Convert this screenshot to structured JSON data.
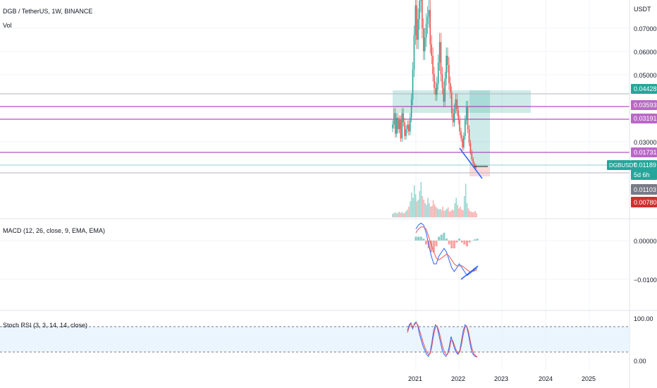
{
  "header": {
    "title": "DGB / TetherUS, 1W, BINANCE",
    "volume_label": "Vol",
    "currency": "USDT"
  },
  "macd": {
    "label": "MACD (12, 26, close, 9, EMA, EMA)"
  },
  "stoch": {
    "label": "Stoch RSI (3, 3, 14, 14, close)"
  },
  "price_tags": [
    {
      "text": "0.04428",
      "color": "#26a69a"
    },
    {
      "text": "0.03593",
      "color": "#ba68c8"
    },
    {
      "text": "0.03191",
      "color": "#ba68c8"
    },
    {
      "text": "0.01731",
      "color": "#ba68c8"
    },
    {
      "text": "0.01189",
      "color": "#26a69a"
    },
    {
      "text": "5d 6h",
      "color": "#26a69a"
    },
    {
      "text": "0.01103",
      "color": "#787b86"
    },
    {
      "text": "0.00780",
      "color": "#d32f2f"
    }
  ],
  "symbol_tag": {
    "text": "DGBUSDT",
    "color": "#26a69a"
  },
  "colors": {
    "up": "#26a69a",
    "down": "#ef5350",
    "grid": "#f0f3fa",
    "purple_line": "#9c27b0",
    "trend_line": "#2962ff",
    "stoch_fill": "#e3f2fd"
  },
  "chart_data": [
    {
      "type": "candlestick",
      "title": "DGB / TetherUS, 1W, BINANCE",
      "y_axis_labels": [
        "0.07000",
        "0.06000",
        "0.05000",
        "0.03000"
      ],
      "x_axis_labels": [
        "2021",
        "2022",
        "2023",
        "2024",
        "2025"
      ],
      "horizontal_levels": [
        0.04428,
        0.03593,
        0.03191,
        0.01731,
        0.01189,
        0.01103
      ],
      "current_price": 0.01189,
      "close_series": [
        0.031,
        0.036,
        0.027,
        0.034,
        0.029,
        0.033,
        0.025,
        0.036,
        0.032,
        0.026,
        0.029,
        0.031,
        0.028,
        0.034,
        0.042,
        0.055,
        0.07,
        0.083,
        0.068,
        0.077,
        0.085,
        0.088,
        0.073,
        0.063,
        0.069,
        0.075,
        0.078,
        0.081,
        0.066,
        0.061,
        0.053,
        0.047,
        0.044,
        0.049,
        0.058,
        0.067,
        0.053,
        0.047,
        0.041,
        0.051,
        0.061,
        0.057,
        0.049,
        0.045,
        0.036,
        0.032,
        0.038,
        0.042,
        0.037,
        0.033,
        0.028,
        0.025,
        0.021,
        0.026,
        0.033,
        0.039,
        0.029,
        0.023,
        0.019,
        0.016,
        0.014,
        0.013,
        0.012
      ]
    },
    {
      "type": "bar",
      "title": "Vol",
      "values": [
        1.0,
        1.2,
        1.4,
        1.1,
        1.3,
        1.6,
        1.2,
        1.5,
        1.1,
        1.3,
        1.8,
        2.2,
        3.0,
        4.5,
        7.0,
        5.5,
        9.0,
        6.5,
        4.5,
        5.0,
        7.5,
        10.0,
        6.0,
        5.0,
        4.0,
        3.5,
        5.5,
        4.0,
        3.0,
        3.2,
        4.8,
        3.6,
        3.0,
        2.6,
        2.2,
        2.4,
        2.1,
        3.0,
        1.8,
        2.0,
        2.4,
        2.8,
        1.6,
        1.8,
        2.2,
        2.0,
        4.0,
        5.5,
        3.5,
        2.5,
        3.0,
        2.2,
        2.0,
        6.0,
        9.5,
        4.0,
        2.5,
        1.8,
        1.6,
        1.4,
        1.5,
        1.8,
        1.2
      ]
    },
    {
      "type": "line",
      "title": "MACD (12, 26, close, 9, EMA, EMA)",
      "y_axis_labels": [
        "0.00000",
        "−0.01000"
      ],
      "series": [
        {
          "values": [
            0.003,
            0.004,
            0.0045,
            0.004,
            0.002,
            -0.001,
            -0.004,
            -0.006,
            -0.006,
            -0.004,
            -0.003,
            -0.002,
            -0.003,
            -0.005,
            -0.007,
            -0.008,
            -0.007,
            -0.006,
            -0.007,
            -0.008,
            -0.009,
            -0.0085,
            -0.008,
            -0.0075,
            -0.007
          ]
        },
        {
          "values": [
            0.002,
            0.003,
            0.0035,
            0.0035,
            0.003,
            0.001,
            -0.001,
            -0.003,
            -0.0045,
            -0.005,
            -0.0045,
            -0.004,
            -0.0035,
            -0.004,
            -0.005,
            -0.006,
            -0.0065,
            -0.0065,
            -0.0065,
            -0.007,
            -0.0075,
            -0.008,
            -0.008,
            -0.0078,
            -0.0075
          ]
        }
      ],
      "histogram": [
        0.001,
        0.001,
        0.001,
        0.0005,
        -0.001,
        -0.002,
        -0.003,
        -0.003,
        -0.0015,
        0.001,
        0.0015,
        0.002,
        0.0005,
        -0.001,
        -0.002,
        -0.002,
        -0.0005,
        0.0005,
        -0.0005,
        -0.001,
        -0.0015,
        -0.0005,
        0.0,
        0.0003,
        0.0005
      ]
    },
    {
      "type": "line",
      "title": "Stoch RSI (3, 3, 14, 14, close)",
      "y_axis_labels": [
        "100.00",
        "0.00"
      ],
      "ylim": [
        0,
        100
      ],
      "bands": [
        80,
        20
      ],
      "series": [
        {
          "values": [
            70,
            85,
            90,
            75,
            88,
            92,
            80,
            60,
            45,
            30,
            20,
            10,
            5,
            15,
            40,
            70,
            85,
            80,
            60,
            40,
            20,
            10,
            5,
            12,
            30,
            55,
            40,
            25,
            15,
            10,
            20,
            45,
            70,
            85,
            80,
            60,
            35,
            15,
            8,
            5,
            3
          ]
        },
        {
          "values": [
            65,
            80,
            88,
            80,
            85,
            90,
            84,
            70,
            55,
            40,
            28,
            17,
            10,
            12,
            30,
            58,
            78,
            82,
            70,
            52,
            32,
            18,
            10,
            10,
            22,
            45,
            45,
            32,
            20,
            13,
            16,
            35,
            60,
            78,
            82,
            68,
            45,
            25,
            12,
            7,
            4
          ]
        }
      ]
    }
  ]
}
